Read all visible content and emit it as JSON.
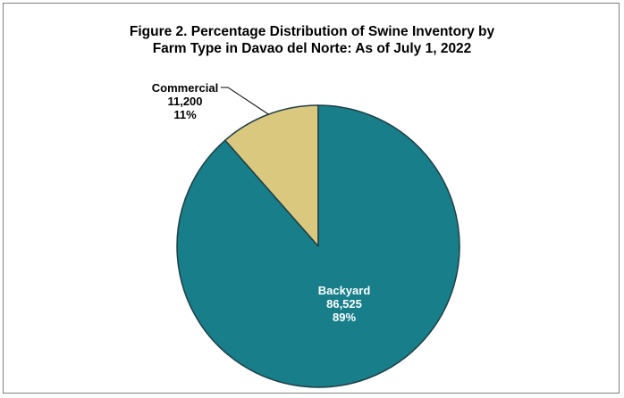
{
  "chart_data": {
    "type": "pie",
    "title_lines": [
      "Figure 2. Percentage Distribution of Swine Inventory by",
      "Farm Type in Davao del Norte: As of July 1, 2022"
    ],
    "slices": [
      {
        "label": "Commercial",
        "value": 11200,
        "value_text": "11,200",
        "percent_text": "11%",
        "color": "#d9c87e",
        "label_color": "#000000"
      },
      {
        "label": "Backyard",
        "value": 86525,
        "value_text": "86,525",
        "percent_text": "89%",
        "color": "#177e8a",
        "label_color": "#ffffff"
      }
    ],
    "start_angle_deg": 0,
    "direction": "counterclockwise-from-top",
    "edge_color": "#1f3f46",
    "legend": "none"
  }
}
